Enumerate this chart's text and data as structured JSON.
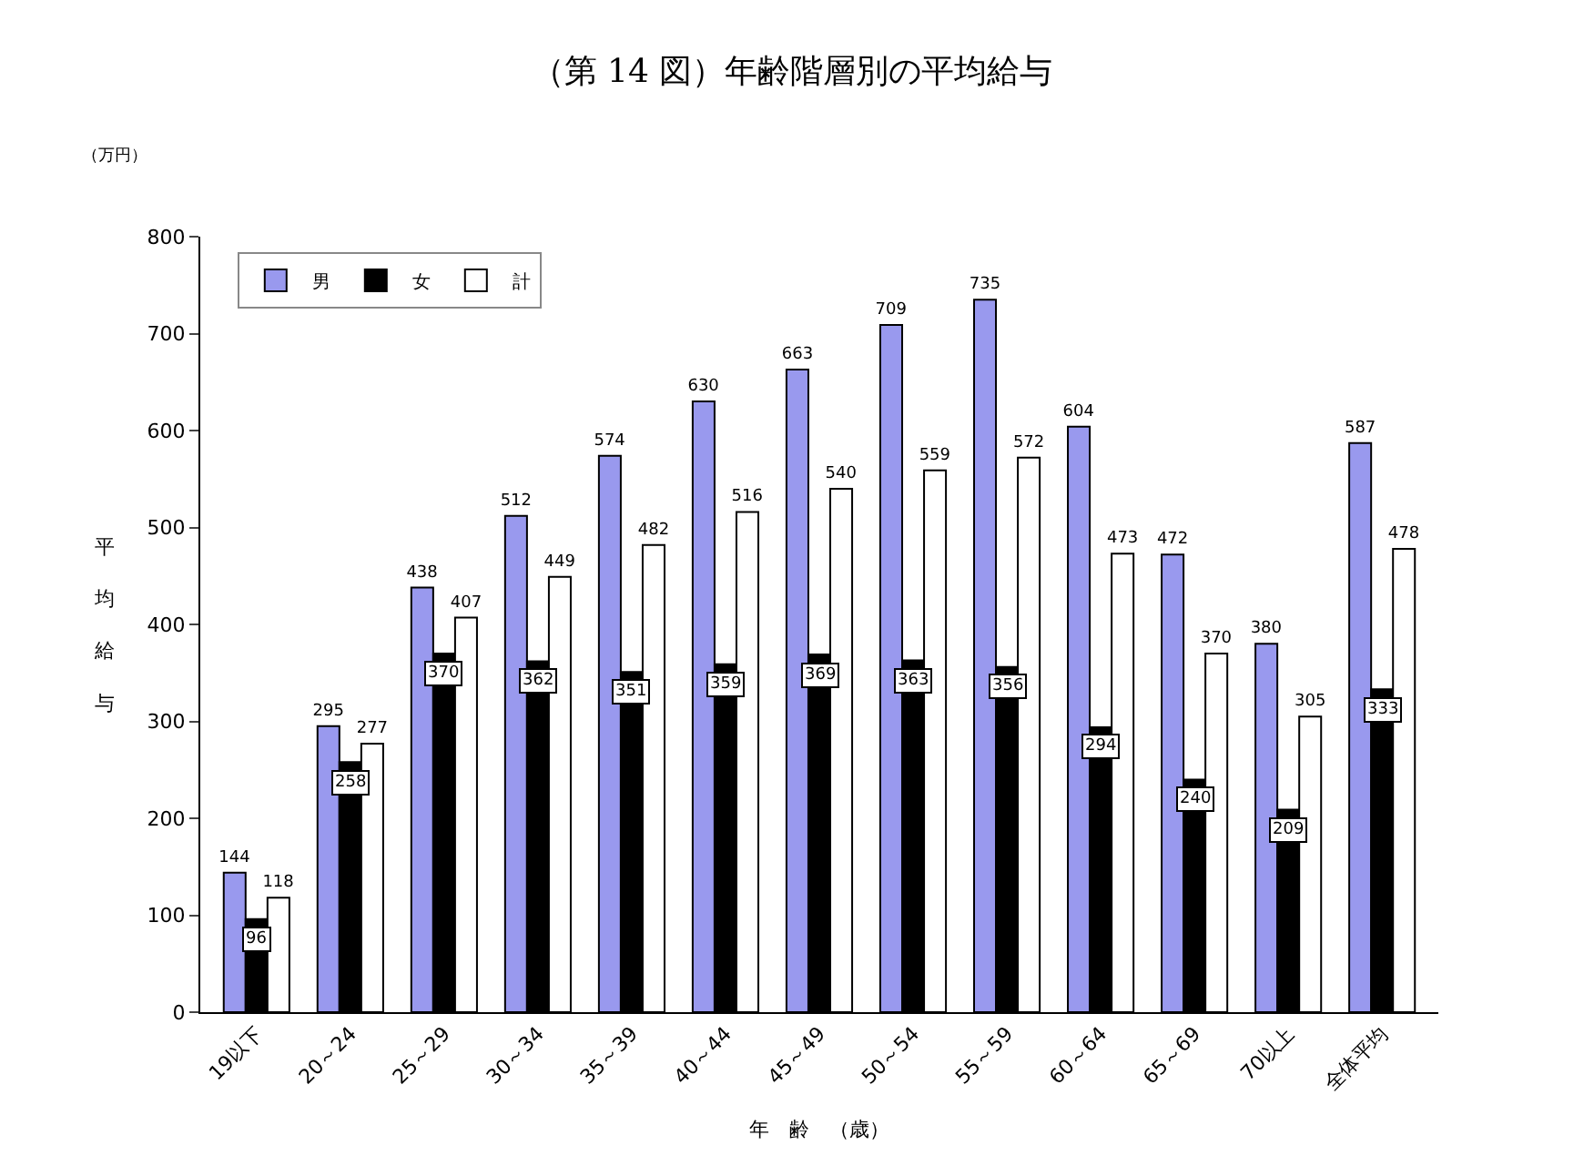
{
  "chart_data": {
    "type": "bar",
    "title": "（第 14 図）年齢階層別の平均給与",
    "xlabel": "年　齢　（歳）",
    "ylabel": "平均給与",
    "annotations": [
      "（万円）"
    ],
    "categories": [
      "19以下",
      "20～24",
      "25～29",
      "30～34",
      "35～39",
      "40～44",
      "45～49",
      "50～54",
      "55～59",
      "60～64",
      "65～69",
      "70以上",
      "全体平均"
    ],
    "series": [
      {
        "name": "男",
        "color": "#9999ee",
        "values": [
          144,
          295,
          438,
          512,
          574,
          630,
          663,
          709,
          735,
          604,
          472,
          380,
          587
        ]
      },
      {
        "name": "女",
        "color": "#000000",
        "values": [
          96,
          258,
          370,
          362,
          351,
          359,
          369,
          363,
          356,
          294,
          240,
          209,
          333
        ]
      },
      {
        "name": "計",
        "color": "#ffffff",
        "values": [
          118,
          277,
          407,
          449,
          482,
          516,
          540,
          559,
          572,
          473,
          370,
          305,
          478
        ]
      }
    ],
    "ylim": [
      0,
      800
    ],
    "yticks": [
      0,
      100,
      200,
      300,
      400,
      500,
      600,
      700,
      800
    ],
    "legend": "top left",
    "data_labels": true
  }
}
